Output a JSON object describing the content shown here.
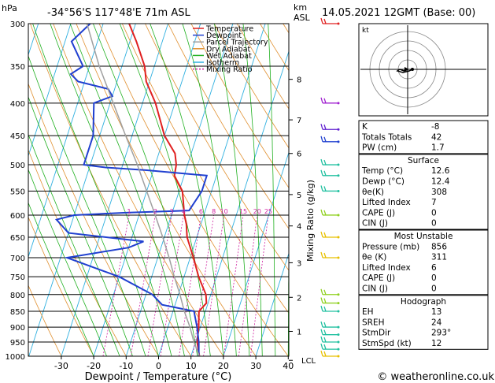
{
  "header": {
    "p_unit": "hPa",
    "location": "-34°56'S  117°48'E  71m  ASL",
    "alt_unit": "km",
    "alt_unit2": "ASL",
    "datetime": "14.05.2021  12GMT  (Base: 00)"
  },
  "chart_data": {
    "type": "line",
    "chart_kind": "skew-T log-p",
    "xlabel": "Dewpoint / Temperature (°C)",
    "ylabel_right": "Mixing Ratio (g/kg)",
    "x_ticks": [
      -30,
      -20,
      -10,
      0,
      10,
      20,
      30,
      40
    ],
    "xlim": [
      -40,
      40
    ],
    "ylim": [
      1000,
      300
    ],
    "y_scale": "log",
    "pressure_ticks": [
      300,
      350,
      400,
      450,
      500,
      550,
      600,
      650,
      700,
      750,
      800,
      850,
      900,
      950,
      1000
    ],
    "altitude_ticks": [
      {
        "label": "8",
        "p": 367
      },
      {
        "label": "7",
        "p": 425
      },
      {
        "label": "6",
        "p": 480
      },
      {
        "label": "5",
        "p": 557
      },
      {
        "label": "4",
        "p": 624
      },
      {
        "label": "3",
        "p": 713
      },
      {
        "label": "2",
        "p": 808
      },
      {
        "label": "1",
        "p": 914
      },
      {
        "label": "LCL",
        "p": 1015
      }
    ],
    "mixing_ratio_labels": [
      "1",
      "2",
      "3",
      "4",
      "6",
      "8",
      "10",
      "15",
      "20",
      "25"
    ],
    "legend": [
      "Temperature",
      "Dewpoint",
      "Parcel Trajectory",
      "Dry Adiabat",
      "Wet Adiabat",
      "Isotherm",
      "Mixing Ratio"
    ],
    "legend_placement": "top-right inside plot",
    "series": [
      {
        "name": "Temperature",
        "color": "#e02020",
        "points": [
          [
            1000,
            12.6
          ],
          [
            950,
            10.5
          ],
          [
            900,
            9.5
          ],
          [
            850,
            8
          ],
          [
            825,
            9.5
          ],
          [
            800,
            8.5
          ],
          [
            750,
            4.5
          ],
          [
            700,
            1
          ],
          [
            650,
            -3
          ],
          [
            620,
            -4.5
          ],
          [
            600,
            -6
          ],
          [
            550,
            -9
          ],
          [
            520,
            -13
          ],
          [
            500,
            -13.5
          ],
          [
            480,
            -15
          ],
          [
            450,
            -20
          ],
          [
            400,
            -26
          ],
          [
            370,
            -31
          ],
          [
            350,
            -33
          ],
          [
            320,
            -38
          ],
          [
            300,
            -42
          ]
        ]
      },
      {
        "name": "Dewpoint",
        "color": "#2040d0",
        "points": [
          [
            1000,
            12.4
          ],
          [
            950,
            11
          ],
          [
            900,
            9
          ],
          [
            860,
            7
          ],
          [
            850,
            6.5
          ],
          [
            830,
            -4
          ],
          [
            800,
            -8
          ],
          [
            750,
            -20
          ],
          [
            700,
            -38
          ],
          [
            675,
            -20
          ],
          [
            660,
            -16
          ],
          [
            640,
            -40
          ],
          [
            610,
            -45
          ],
          [
            600,
            -40
          ],
          [
            595,
            -25
          ],
          [
            590,
            -5
          ],
          [
            550,
            -3
          ],
          [
            520,
            -3
          ],
          [
            510,
            -22
          ],
          [
            505,
            -35
          ],
          [
            500,
            -42
          ],
          [
            450,
            -42
          ],
          [
            400,
            -45
          ],
          [
            390,
            -40
          ],
          [
            380,
            -42
          ],
          [
            370,
            -52
          ],
          [
            360,
            -55
          ],
          [
            350,
            -52
          ],
          [
            320,
            -58
          ],
          [
            300,
            -54
          ]
        ]
      },
      {
        "name": "Parcel Trajectory",
        "color": "#a0a0a0",
        "points": [
          [
            1000,
            12.6
          ],
          [
            950,
            9.5
          ],
          [
            900,
            6.8
          ],
          [
            850,
            3.5
          ],
          [
            800,
            0.5
          ],
          [
            750,
            -3
          ],
          [
            700,
            -6.5
          ],
          [
            650,
            -10.5
          ],
          [
            600,
            -15
          ],
          [
            550,
            -20
          ],
          [
            500,
            -25.5
          ],
          [
            450,
            -32
          ],
          [
            400,
            -39
          ],
          [
            350,
            -47
          ],
          [
            300,
            -55
          ]
        ]
      }
    ],
    "winds": [
      {
        "p": 1000,
        "color": "#e8c000"
      },
      {
        "p": 975,
        "color": "#20c0a0"
      },
      {
        "p": 950,
        "color": "#20c0a0"
      },
      {
        "p": 925,
        "color": "#20c0a0"
      },
      {
        "p": 900,
        "color": "#20c0a0"
      },
      {
        "p": 850,
        "color": "#20c0a0"
      },
      {
        "p": 825,
        "color": "#90d020"
      },
      {
        "p": 800,
        "color": "#90d020"
      },
      {
        "p": 700,
        "color": "#e8c000"
      },
      {
        "p": 650,
        "color": "#e8c000"
      },
      {
        "p": 600,
        "color": "#90d020"
      },
      {
        "p": 550,
        "color": "#20c0a0"
      },
      {
        "p": 520,
        "color": "#20c0a0"
      },
      {
        "p": 500,
        "color": "#20c0a0"
      },
      {
        "p": 460,
        "color": "#2040d0"
      },
      {
        "p": 440,
        "color": "#6020d0"
      },
      {
        "p": 400,
        "color": "#a020d0"
      },
      {
        "p": 300,
        "color": "#e02020"
      }
    ]
  },
  "hodograph": {
    "label": "kt"
  },
  "indices": {
    "rows": [
      {
        "label": "K",
        "value": "-8"
      },
      {
        "label": "Totals Totals",
        "value": "42"
      },
      {
        "label": "PW (cm)",
        "value": "1.7"
      }
    ]
  },
  "surface": {
    "title": "Surface",
    "rows": [
      {
        "label": "Temp (°C)",
        "value": "12.6"
      },
      {
        "label": "Dewp (°C)",
        "value": "12.4"
      },
      {
        "label": "θe(K)",
        "value": "308"
      },
      {
        "label": "Lifted Index",
        "value": "7"
      },
      {
        "label": "CAPE (J)",
        "value": "0"
      },
      {
        "label": "CIN (J)",
        "value": "0"
      }
    ]
  },
  "most_unstable": {
    "title": "Most Unstable",
    "rows": [
      {
        "label": "Pressure (mb)",
        "value": "856"
      },
      {
        "label": "θe (K)",
        "value": "311"
      },
      {
        "label": "Lifted Index",
        "value": "6"
      },
      {
        "label": "CAPE (J)",
        "value": "0"
      },
      {
        "label": "CIN (J)",
        "value": "0"
      }
    ]
  },
  "hodograph_stats": {
    "title": "Hodograph",
    "rows": [
      {
        "label": "EH",
        "value": "13"
      },
      {
        "label": "SREH",
        "value": "24"
      },
      {
        "label": "StmDir",
        "value": "293°"
      },
      {
        "label": "StmSpd (kt)",
        "value": "12"
      }
    ]
  },
  "copyright": "© weatheronline.co.uk"
}
